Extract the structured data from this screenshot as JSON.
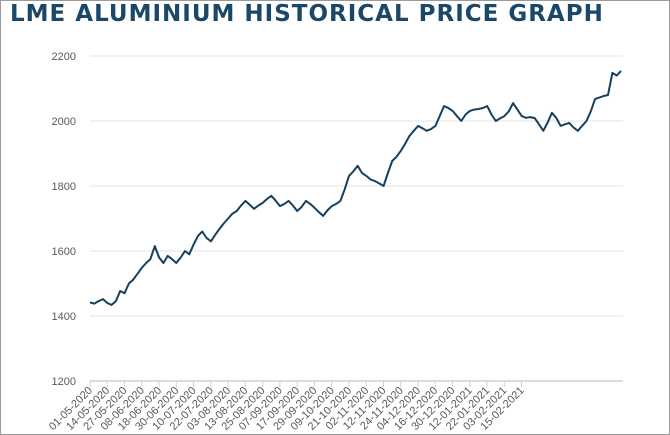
{
  "chart_data": {
    "type": "line",
    "title": "LME ALUMINIUM HISTORICAL PRICE GRAPH",
    "xlabel": "",
    "ylabel": "",
    "ylim": [
      1200,
      2200
    ],
    "yticks": [
      1200,
      1400,
      1600,
      1800,
      2000,
      2200
    ],
    "grid": true,
    "line_color": "#17405f",
    "x_tick_labels": [
      "01-05-2020",
      "14-05-2020",
      "27-05-2020",
      "08-06-2020",
      "18-06-2020",
      "30-06-2020",
      "10-07-2020",
      "22-07-2020",
      "03-08-2020",
      "13-08-2020",
      "25-08-2020",
      "07-09-2020",
      "17-09-2020",
      "29-09-2020",
      "09-10-2020",
      "21-10-2020",
      "02-11-2020",
      "12-11-2020",
      "24-11-2020",
      "04-12-2020",
      "16-12-2020",
      "30-12-2020",
      "12-01-2021",
      "22-01-2021",
      "03-02-2021",
      "15-02-2021"
    ],
    "series": [
      {
        "name": "LME Aluminium",
        "values": [
          1442,
          1438,
          1446,
          1452,
          1440,
          1434,
          1446,
          1477,
          1470,
          1500,
          1512,
          1530,
          1548,
          1563,
          1575,
          1615,
          1580,
          1563,
          1585,
          1575,
          1563,
          1580,
          1600,
          1590,
          1620,
          1646,
          1660,
          1640,
          1630,
          1650,
          1668,
          1685,
          1700,
          1715,
          1723,
          1740,
          1754,
          1742,
          1730,
          1740,
          1748,
          1760,
          1770,
          1755,
          1738,
          1745,
          1754,
          1740,
          1723,
          1735,
          1754,
          1745,
          1733,
          1720,
          1708,
          1725,
          1738,
          1745,
          1754,
          1790,
          1831,
          1845,
          1862,
          1840,
          1831,
          1820,
          1815,
          1808,
          1800,
          1840,
          1877,
          1890,
          1908,
          1930,
          1954,
          1970,
          1985,
          1978,
          1970,
          1975,
          1985,
          2015,
          2046,
          2040,
          2031,
          2015,
          2000,
          2020,
          2031,
          2035,
          2037,
          2040,
          2046,
          2020,
          2000,
          2008,
          2015,
          2030,
          2055,
          2035,
          2015,
          2010,
          2012,
          2009,
          1990,
          1970,
          1995,
          2025,
          2010,
          1985,
          1990,
          1994,
          1980,
          1970,
          1985,
          2000,
          2030,
          2068,
          2072,
          2077,
          2080,
          2148,
          2140,
          2154
        ]
      }
    ]
  }
}
